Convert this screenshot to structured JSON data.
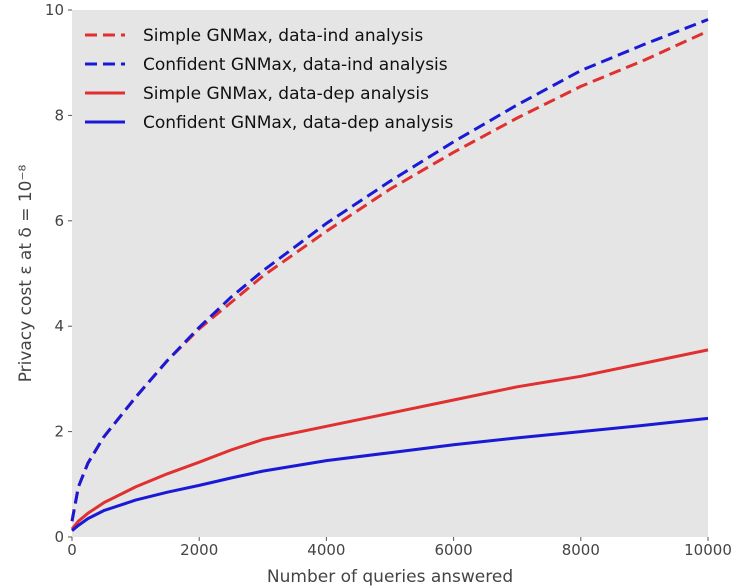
{
  "chart_data": {
    "type": "line",
    "xlabel": "Number of queries answered",
    "ylabel": "Privacy cost ε at δ = 10⁻⁸",
    "xlim": [
      0,
      10000
    ],
    "ylim": [
      0,
      10
    ],
    "xticks": [
      0,
      2000,
      4000,
      6000,
      8000,
      10000
    ],
    "yticks": [
      0,
      2,
      4,
      6,
      8,
      10
    ],
    "grid": false,
    "background": "#e5e5e5",
    "legend_position": "top-left",
    "x": [
      0,
      100,
      250,
      500,
      1000,
      1500,
      2000,
      2500,
      3000,
      4000,
      5000,
      6000,
      7000,
      8000,
      9000,
      10000
    ],
    "series": [
      {
        "name": "Simple GNMax, data-ind analysis",
        "color": "#e03030",
        "style": "dashed",
        "values": [
          0.3,
          0.95,
          1.4,
          1.9,
          2.65,
          3.35,
          3.95,
          4.45,
          4.95,
          5.8,
          6.6,
          7.3,
          7.95,
          8.55,
          9.05,
          9.6
        ]
      },
      {
        "name": "Confident GNMax, data-ind analysis",
        "color": "#1a1ad6",
        "style": "dashed",
        "values": [
          0.3,
          0.95,
          1.4,
          1.9,
          2.65,
          3.35,
          3.98,
          4.55,
          5.05,
          5.95,
          6.75,
          7.5,
          8.2,
          8.85,
          9.35,
          9.82
        ]
      },
      {
        "name": "Simple GNMax, data-dep analysis",
        "color": "#e03030",
        "style": "solid",
        "values": [
          0.15,
          0.3,
          0.45,
          0.65,
          0.95,
          1.2,
          1.42,
          1.65,
          1.85,
          2.1,
          2.35,
          2.6,
          2.85,
          3.05,
          3.3,
          3.55
        ]
      },
      {
        "name": "Confident GNMax, data-dep analysis",
        "color": "#1a1ad6",
        "style": "solid",
        "values": [
          0.12,
          0.22,
          0.35,
          0.5,
          0.7,
          0.85,
          0.98,
          1.12,
          1.25,
          1.45,
          1.6,
          1.75,
          1.88,
          2.0,
          2.12,
          2.25
        ]
      }
    ]
  }
}
